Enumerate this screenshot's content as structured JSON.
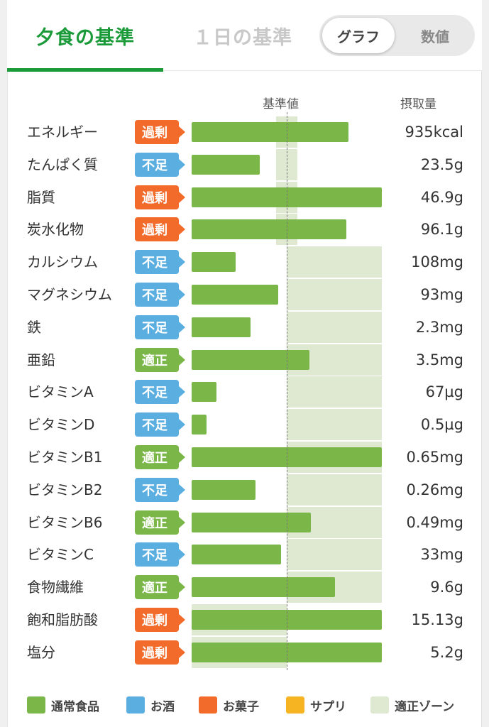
{
  "tabs": {
    "dinner": "夕食の基準",
    "daily": "１日の基準"
  },
  "view_toggle": {
    "graph": "グラフ",
    "numeric": "数値"
  },
  "columns": {
    "reference": "基準値",
    "intake": "摂取量"
  },
  "status_colors": {
    "過剰": "#f26b2a",
    "不足": "#5aaee0",
    "適正": "#7ab648"
  },
  "rows": [
    {
      "name": "エネルギー",
      "status": "過剰",
      "value": "935kcal",
      "fill": 1.65,
      "zone": [
        0.89,
        1.11
      ]
    },
    {
      "name": "たんぱく質",
      "status": "不足",
      "value": "23.5g",
      "fill": 0.72,
      "zone": [
        0.89,
        1.11
      ]
    },
    {
      "name": "脂質",
      "status": "過剰",
      "value": "46.9g",
      "fill": 2.0,
      "zone": [
        0.89,
        1.11
      ]
    },
    {
      "name": "炭水化物",
      "status": "過剰",
      "value": "96.1g",
      "fill": 1.63,
      "zone": [
        0.89,
        1.11
      ]
    },
    {
      "name": "カルシウム",
      "status": "不足",
      "value": "108mg",
      "fill": 0.46,
      "zone": [
        1.0,
        2.0
      ]
    },
    {
      "name": "マグネシウム",
      "status": "不足",
      "value": "93mg",
      "fill": 0.91,
      "zone": [
        1.0,
        2.0
      ]
    },
    {
      "name": "鉄",
      "status": "不足",
      "value": "2.3mg",
      "fill": 0.62,
      "zone": [
        1.0,
        2.0
      ]
    },
    {
      "name": "亜鉛",
      "status": "適正",
      "value": "3.5mg",
      "fill": 1.24,
      "zone": [
        1.0,
        2.0
      ]
    },
    {
      "name": "ビタミンA",
      "status": "不足",
      "value": "67µg",
      "fill": 0.26,
      "zone": [
        1.0,
        2.0
      ]
    },
    {
      "name": "ビタミンD",
      "status": "不足",
      "value": "0.5µg",
      "fill": 0.16,
      "zone": [
        1.0,
        2.0
      ]
    },
    {
      "name": "ビタミンB1",
      "status": "適正",
      "value": "0.65mg",
      "fill": 2.0,
      "zone": [
        1.0,
        2.0
      ]
    },
    {
      "name": "ビタミンB2",
      "status": "不足",
      "value": "0.26mg",
      "fill": 0.67,
      "zone": [
        1.0,
        2.0
      ]
    },
    {
      "name": "ビタミンB6",
      "status": "適正",
      "value": "0.49mg",
      "fill": 1.25,
      "zone": [
        1.0,
        2.0
      ]
    },
    {
      "name": "ビタミンC",
      "status": "不足",
      "value": "33mg",
      "fill": 0.94,
      "zone": [
        1.0,
        2.0
      ]
    },
    {
      "name": "食物繊維",
      "status": "適正",
      "value": "9.6g",
      "fill": 1.51,
      "zone": [
        1.0,
        2.0
      ]
    },
    {
      "name": "飽和脂肪酸",
      "status": "過剰",
      "value": "15.13g",
      "fill": 2.0,
      "zone": [
        0.0,
        1.0
      ]
    },
    {
      "name": "塩分",
      "status": "過剰",
      "value": "5.2g",
      "fill": 2.0,
      "zone": [
        0.0,
        1.0
      ]
    }
  ],
  "legend": [
    {
      "label": "通常食品",
      "color": "#7ab648"
    },
    {
      "label": "お酒",
      "color": "#5aaee0"
    },
    {
      "label": "お菓子",
      "color": "#f26b2a"
    },
    {
      "label": "サプリ",
      "color": "#f6b422"
    },
    {
      "label": "適正ゾーン",
      "color": "#dfe9d1"
    }
  ]
}
